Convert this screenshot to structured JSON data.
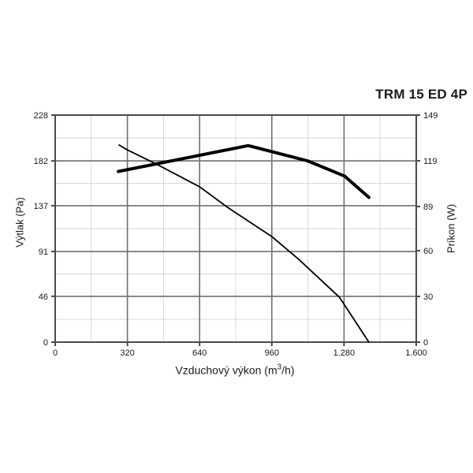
{
  "chart_data": {
    "type": "line",
    "title": "TRM 15 ED 4P",
    "legend": "none",
    "grid": "major+minor",
    "x_axis": {
      "label_prefix": "Vzduchový výkon (m",
      "label_sup": "3",
      "label_suffix": "/h)",
      "range": [
        0,
        1600
      ],
      "ticks": [
        0,
        320,
        640,
        960,
        1280,
        1600
      ],
      "tick_labels": [
        "0",
        "320",
        "640",
        "960",
        "1.280",
        "1.600"
      ],
      "minor_step": 160
    },
    "y_left": {
      "label": "Výtlak (Pa)",
      "range": [
        0,
        228
      ],
      "ticks": [
        0,
        46,
        91,
        137,
        182,
        228
      ],
      "tick_labels": [
        "0",
        "46",
        "91",
        "137",
        "182",
        "228"
      ]
    },
    "y_right": {
      "label": "Príkon (W)",
      "range": [
        0,
        149
      ],
      "ticks": [
        0,
        30,
        60,
        89,
        119,
        149
      ],
      "tick_labels": [
        "0",
        "30",
        "60",
        "89",
        "119",
        "149"
      ]
    },
    "series": [
      {
        "name": "vytlak-pressure-curve",
        "axis": "left",
        "stroke_width": 1.8,
        "points": [
          [
            283,
            198
          ],
          [
            320,
            193
          ],
          [
            447,
            179
          ],
          [
            640,
            156
          ],
          [
            760,
            136
          ],
          [
            960,
            106
          ],
          [
            1080,
            83
          ],
          [
            1260,
            45
          ],
          [
            1390,
            0
          ]
        ]
      },
      {
        "name": "prikon-power-curve",
        "axis": "right",
        "stroke_width": 4,
        "points": [
          [
            280,
            112
          ],
          [
            856,
            129
          ],
          [
            1118,
            119
          ],
          [
            1282,
            109
          ],
          [
            1390,
            95
          ]
        ]
      }
    ],
    "colors": {
      "line": "#000000",
      "frame": "#4a4a4a",
      "grid_major": "#707070",
      "grid_minor": "#d9d9d9",
      "text": "#1a1a1a",
      "background": "#ffffff"
    }
  }
}
